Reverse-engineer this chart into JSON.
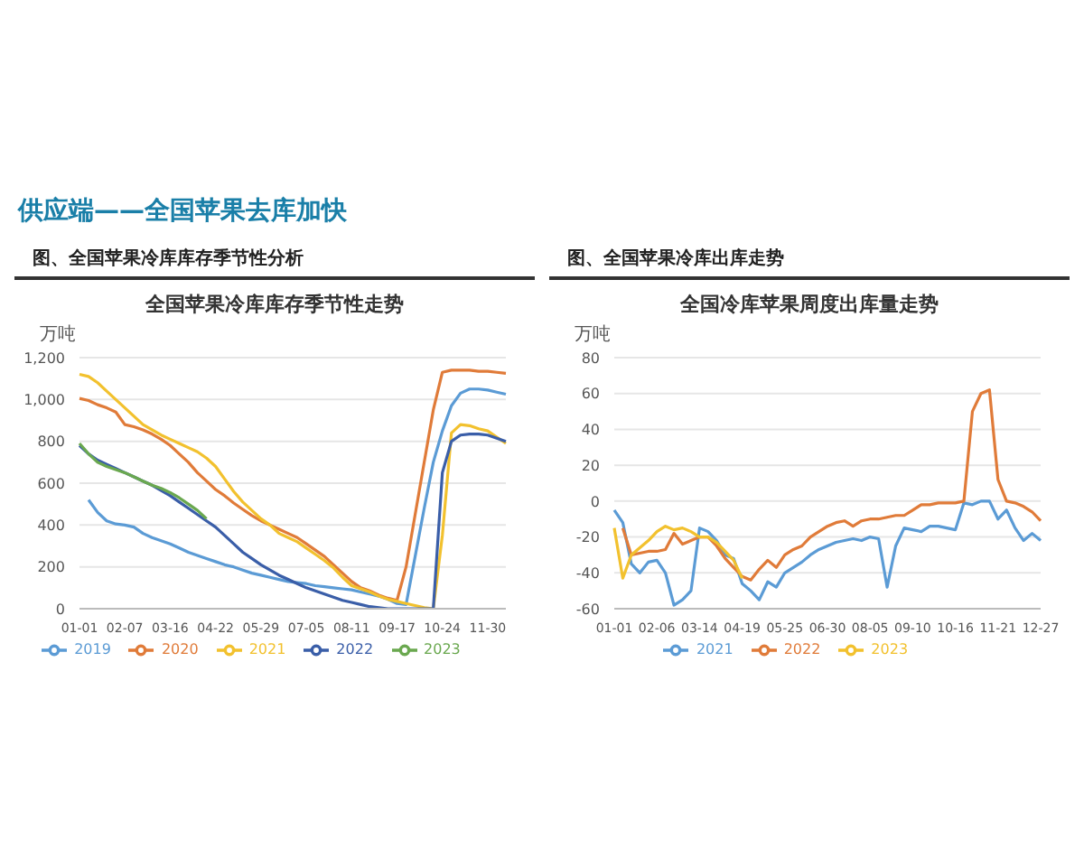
{
  "chart_data": [
    {
      "type": "line",
      "title": "全国苹果冷库库存季节性走势",
      "subtitle": "图、全国苹果冷库库存季节性分析",
      "ylabel": "万吨",
      "annotations": [
        "供应端——全国苹果去库加快"
      ],
      "categories": [
        "01-01",
        null,
        null,
        null,
        null,
        "02-07",
        null,
        null,
        null,
        null,
        "03-16",
        null,
        null,
        null,
        null,
        "04-22",
        null,
        null,
        null,
        null,
        "05-29",
        null,
        null,
        null,
        null,
        "07-05",
        null,
        null,
        null,
        null,
        "08-11",
        null,
        null,
        null,
        null,
        "09-17",
        null,
        null,
        null,
        null,
        "10-24",
        null,
        null,
        null,
        null,
        "11-30",
        null,
        null
      ],
      "series": [
        {
          "name": "2019",
          "color": "#5b9bd5",
          "values": [
            null,
            520,
            460,
            420,
            405,
            400,
            390,
            360,
            340,
            325,
            310,
            290,
            270,
            255,
            240,
            225,
            210,
            200,
            185,
            170,
            160,
            150,
            140,
            130,
            125,
            120,
            110,
            105,
            100,
            95,
            90,
            80,
            70,
            60,
            45,
            25,
            20,
            250,
            480,
            700,
            850,
            970,
            1030,
            1050,
            1050,
            1045,
            1035,
            1025
          ]
        },
        {
          "name": "2020",
          "color": "#e07b39",
          "values": [
            1005,
            995,
            975,
            960,
            940,
            880,
            870,
            855,
            835,
            810,
            780,
            740,
            700,
            650,
            610,
            570,
            540,
            505,
            475,
            445,
            420,
            400,
            380,
            360,
            340,
            310,
            280,
            250,
            210,
            170,
            130,
            100,
            85,
            65,
            50,
            40,
            200,
            450,
            700,
            950,
            1130,
            1140,
            1140,
            1140,
            1135,
            1135,
            1130,
            1125
          ]
        },
        {
          "name": "2021",
          "color": "#f2c12e",
          "values": [
            1120,
            1110,
            1080,
            1040,
            1000,
            960,
            920,
            880,
            855,
            830,
            810,
            790,
            770,
            750,
            720,
            680,
            620,
            560,
            510,
            470,
            430,
            400,
            360,
            340,
            320,
            290,
            260,
            230,
            195,
            150,
            110,
            95,
            80,
            60,
            45,
            35,
            25,
            15,
            5,
            0,
            350,
            840,
            880,
            875,
            860,
            850,
            820,
            790
          ]
        },
        {
          "name": "2022",
          "color": "#3a5ea8",
          "values": [
            780,
            740,
            710,
            690,
            670,
            650,
            630,
            610,
            590,
            565,
            540,
            510,
            480,
            450,
            420,
            390,
            350,
            310,
            270,
            240,
            210,
            185,
            160,
            140,
            120,
            100,
            85,
            70,
            55,
            40,
            30,
            20,
            10,
            5,
            0,
            0,
            0,
            0,
            0,
            0,
            650,
            800,
            830,
            835,
            835,
            830,
            815,
            800
          ]
        },
        {
          "name": "2023",
          "color": "#6aa84f",
          "values": [
            790,
            740,
            700,
            680,
            665,
            650,
            630,
            610,
            590,
            575,
            555,
            530,
            500,
            470,
            430,
            null,
            null,
            null,
            null,
            null,
            null,
            null,
            null,
            null,
            null,
            null,
            null,
            null,
            null,
            null,
            null,
            null,
            null,
            null,
            null,
            null,
            null,
            null,
            null,
            null,
            null,
            null,
            null,
            null,
            null,
            null,
            null,
            null
          ]
        }
      ],
      "ylim": [
        0,
        1200
      ],
      "yticks": [
        0,
        200,
        400,
        600,
        800,
        {
          "value": 1000,
          "label": "1,000"
        },
        {
          "value": 1200,
          "label": "1,200"
        }
      ],
      "grid": "y",
      "legend": "bottom",
      "marker": "none"
    },
    {
      "type": "line",
      "title": "全国冷库苹果周度出库量走势",
      "subtitle": "图、全国苹果冷库出库走势",
      "ylabel": "万吨",
      "categories": [
        "01-01",
        null,
        null,
        null,
        null,
        "02-06",
        null,
        null,
        null,
        null,
        "03-14",
        null,
        null,
        null,
        null,
        "04-19",
        null,
        null,
        null,
        null,
        "05-25",
        null,
        null,
        null,
        null,
        "06-30",
        null,
        null,
        null,
        null,
        "08-05",
        null,
        null,
        null,
        null,
        "09-10",
        null,
        null,
        null,
        null,
        "10-16",
        null,
        null,
        null,
        null,
        "11-21",
        null,
        null,
        null,
        null,
        "12-27"
      ],
      "series": [
        {
          "name": "2021",
          "color": "#5b9bd5",
          "values": [
            -5,
            -12,
            -35,
            -40,
            -34,
            -33,
            -40,
            -58,
            -55,
            -50,
            -15,
            -17,
            -22,
            -30,
            -32,
            -46,
            -50,
            -55,
            -45,
            -48,
            -40,
            -37,
            -34,
            -30,
            -27,
            -25,
            -23,
            -22,
            -21,
            -22,
            -20,
            -21,
            -48,
            -25,
            -15,
            -16,
            -17,
            -14,
            -14,
            -15,
            -16,
            -1,
            -2,
            0,
            0,
            -10,
            -5,
            -15,
            -22,
            -18,
            -22
          ]
        },
        {
          "name": "2022",
          "color": "#e07b39",
          "values": [
            null,
            -15,
            -30,
            -29,
            -28,
            -28,
            -27,
            -18,
            -24,
            -22,
            -20,
            -20,
            -25,
            -32,
            -37,
            -42,
            -44,
            -38,
            -33,
            -37,
            -30,
            -27,
            -25,
            -20,
            -17,
            -14,
            -12,
            -11,
            -14,
            -11,
            -10,
            -10,
            -9,
            -8,
            -8,
            -5,
            -2,
            -2,
            -1,
            -1,
            -1,
            0,
            50,
            60,
            62,
            12,
            0,
            -1,
            -3,
            -6,
            -11
          ]
        },
        {
          "name": "2023",
          "color": "#f2c12e",
          "values": [
            -15,
            -43,
            -30,
            -26,
            -22,
            -17,
            -14,
            -16,
            -15,
            -17,
            -20,
            -20,
            -23,
            -28,
            -33,
            -43,
            null,
            null,
            null,
            null,
            null,
            null,
            null,
            null,
            null,
            null,
            null,
            null,
            null,
            null,
            null,
            null,
            null,
            null,
            null,
            null,
            null,
            null,
            null,
            null,
            null,
            null,
            null,
            null,
            null,
            null,
            null,
            null,
            null,
            null,
            null
          ]
        }
      ],
      "ylim": [
        -60,
        80
      ],
      "yticks": [
        -60,
        -40,
        -20,
        0,
        20,
        40,
        60,
        80
      ],
      "grid": "y",
      "legend": "bottom",
      "marker": "none"
    }
  ]
}
